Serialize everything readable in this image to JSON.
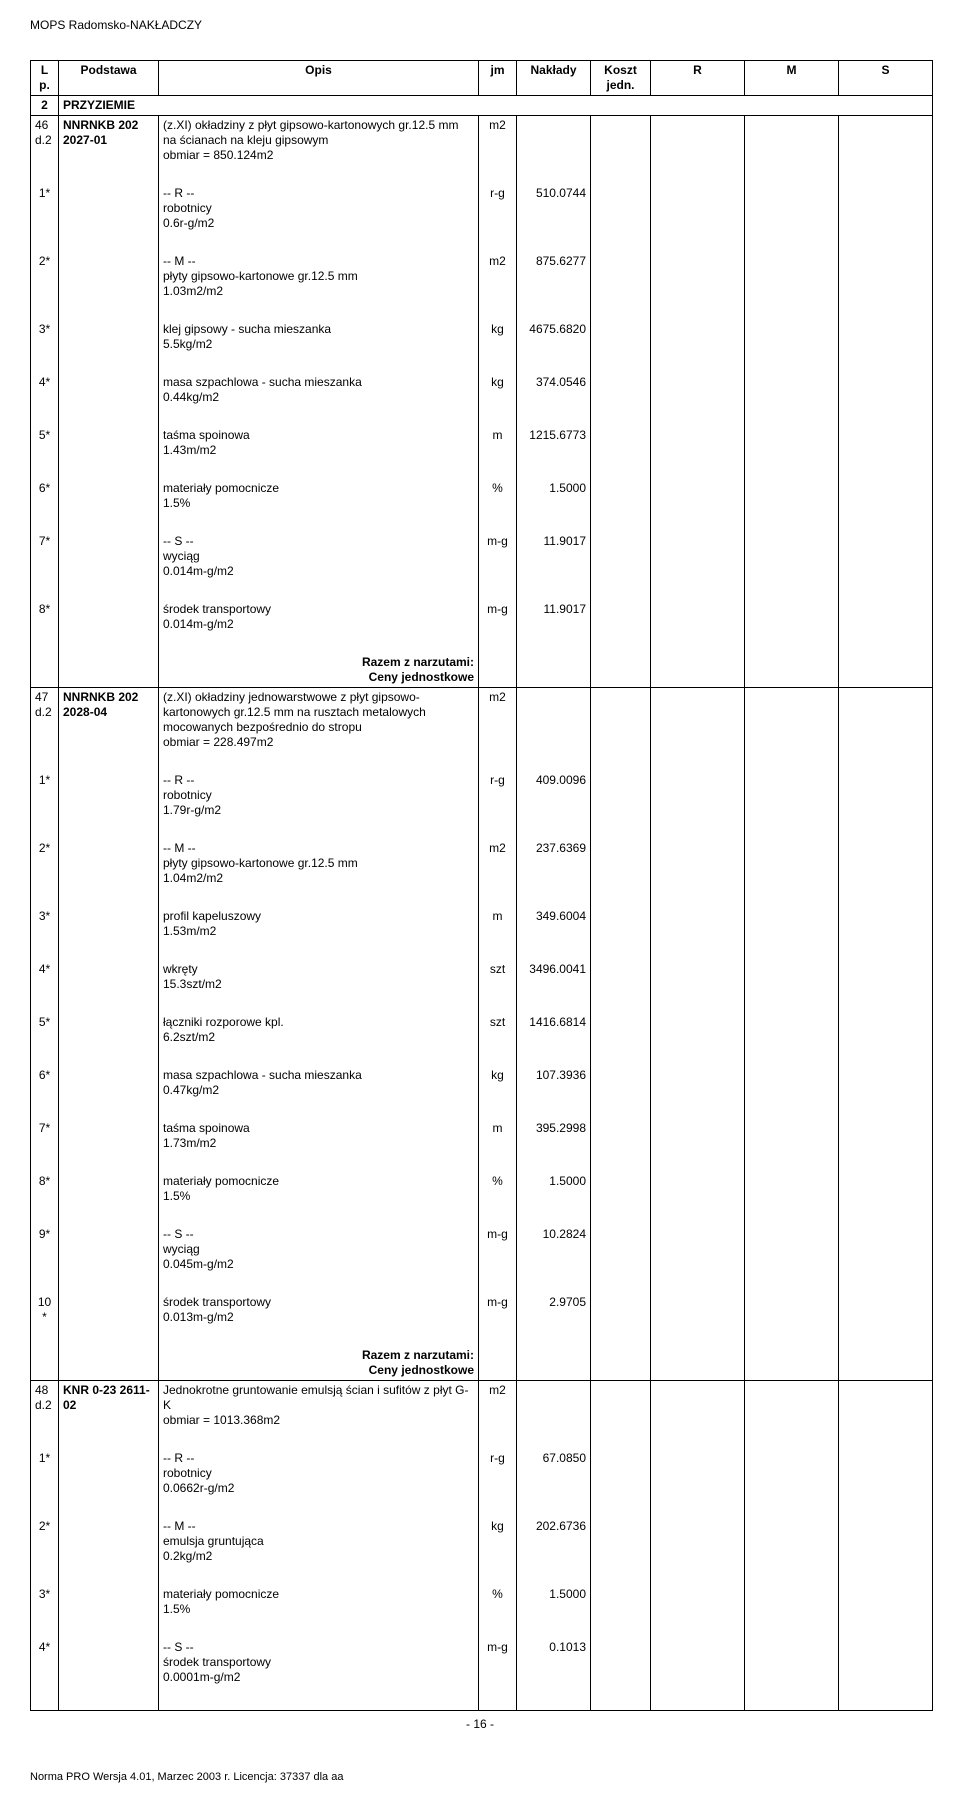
{
  "header_title": "MOPS Radomsko-NAKŁADCZY",
  "columns": {
    "lp": "L p.",
    "podstawa": "Podstawa",
    "opis": "Opis",
    "jm": "jm",
    "naklady": "Nakłady",
    "koszt": "Koszt jedn.",
    "r": "R",
    "m": "M",
    "s": "S"
  },
  "section": {
    "lp": "2",
    "title": "PRZYZIEMIE"
  },
  "items": [
    {
      "lp": "46 d.2",
      "podstawa": "NNRNKB 202 2027-01",
      "opis": "(z.XI) okładziny z płyt gipsowo-kartonowych gr.12.5 mm na ścianach na kleju gipsowym\nobmiar = 850.124m2",
      "jm": "m2",
      "rows": [
        {
          "mark": "1*",
          "txt": "-- R --\nrobotnicy\n0.6r-g/m2",
          "jm": "r-g",
          "val": "510.0744"
        },
        {
          "mark": "2*",
          "txt": "-- M --\npłyty gipsowo-kartonowe gr.12.5 mm\n1.03m2/m2",
          "jm": "m2",
          "val": "875.6277"
        },
        {
          "mark": "3*",
          "txt": "klej gipsowy - sucha mieszanka\n5.5kg/m2",
          "jm": "kg",
          "val": "4675.6820"
        },
        {
          "mark": "4*",
          "txt": "masa szpachlowa - sucha mieszanka\n0.44kg/m2",
          "jm": "kg",
          "val": "374.0546"
        },
        {
          "mark": "5*",
          "txt": "taśma spoinowa\n1.43m/m2",
          "jm": "m",
          "val": "1215.6773"
        },
        {
          "mark": "6*",
          "txt": "materiały pomocnicze\n1.5%",
          "jm": "%",
          "val": "1.5000"
        },
        {
          "mark": "7*",
          "txt": "-- S --\nwyciąg\n0.014m-g/m2",
          "jm": "m-g",
          "val": "11.9017"
        },
        {
          "mark": "8*",
          "txt": "środek transportowy\n0.014m-g/m2",
          "jm": "m-g",
          "val": "11.9017"
        }
      ],
      "summary": [
        "Razem z narzutami:",
        "Ceny jednostkowe"
      ]
    },
    {
      "lp": "47 d.2",
      "podstawa": "NNRNKB 202 2028-04",
      "opis": "(z.XI) okładziny jednowarstwowe z płyt gipsowo-kartonowych gr.12.5 mm na rusztach metalowych mocowanych bezpośrednio do stropu\nobmiar = 228.497m2",
      "jm": "m2",
      "rows": [
        {
          "mark": "1*",
          "txt": "-- R --\nrobotnicy\n1.79r-g/m2",
          "jm": "r-g",
          "val": "409.0096"
        },
        {
          "mark": "2*",
          "txt": "-- M --\npłyty gipsowo-kartonowe gr.12.5 mm\n1.04m2/m2",
          "jm": "m2",
          "val": "237.6369"
        },
        {
          "mark": "3*",
          "txt": "profil kapeluszowy\n1.53m/m2",
          "jm": "m",
          "val": "349.6004"
        },
        {
          "mark": "4*",
          "txt": "wkręty\n15.3szt/m2",
          "jm": "szt",
          "val": "3496.0041"
        },
        {
          "mark": "5*",
          "txt": "łączniki rozporowe kpl.\n6.2szt/m2",
          "jm": "szt",
          "val": "1416.6814"
        },
        {
          "mark": "6*",
          "txt": "masa szpachlowa - sucha mieszanka\n0.47kg/m2",
          "jm": "kg",
          "val": "107.3936"
        },
        {
          "mark": "7*",
          "txt": "taśma spoinowa\n1.73m/m2",
          "jm": "m",
          "val": "395.2998"
        },
        {
          "mark": "8*",
          "txt": "materiały pomocnicze\n1.5%",
          "jm": "%",
          "val": "1.5000"
        },
        {
          "mark": "9*",
          "txt": "-- S --\nwyciąg\n0.045m-g/m2",
          "jm": "m-g",
          "val": "10.2824"
        },
        {
          "mark": "10 *",
          "txt": "środek transportowy\n0.013m-g/m2",
          "jm": "m-g",
          "val": "2.9705"
        }
      ],
      "summary": [
        "Razem z narzutami:",
        "Ceny jednostkowe"
      ]
    },
    {
      "lp": "48 d.2",
      "podstawa": "KNR 0-23 2611-02",
      "opis": "Jednokrotne gruntowanie emulsją ścian i sufitów z płyt G-K\nobmiar = 1013.368m2",
      "jm": "m2",
      "rows": [
        {
          "mark": "1*",
          "txt": "-- R --\nrobotnicy\n0.0662r-g/m2",
          "jm": "r-g",
          "val": "67.0850"
        },
        {
          "mark": "2*",
          "txt": "-- M --\nemulsja gruntująca\n0.2kg/m2",
          "jm": "kg",
          "val": "202.6736"
        },
        {
          "mark": "3*",
          "txt": "materiały pomocnicze\n1.5%",
          "jm": "%",
          "val": "1.5000"
        },
        {
          "mark": "4*",
          "txt": "-- S --\nśrodek transportowy\n0.0001m-g/m2",
          "jm": "m-g",
          "val": "0.1013"
        }
      ],
      "summary": []
    }
  ],
  "page_number": "- 16 -",
  "footer": "Norma PRO Wersja 4.01, Marzec 2003 r. Licencja: 37337 dla aa"
}
